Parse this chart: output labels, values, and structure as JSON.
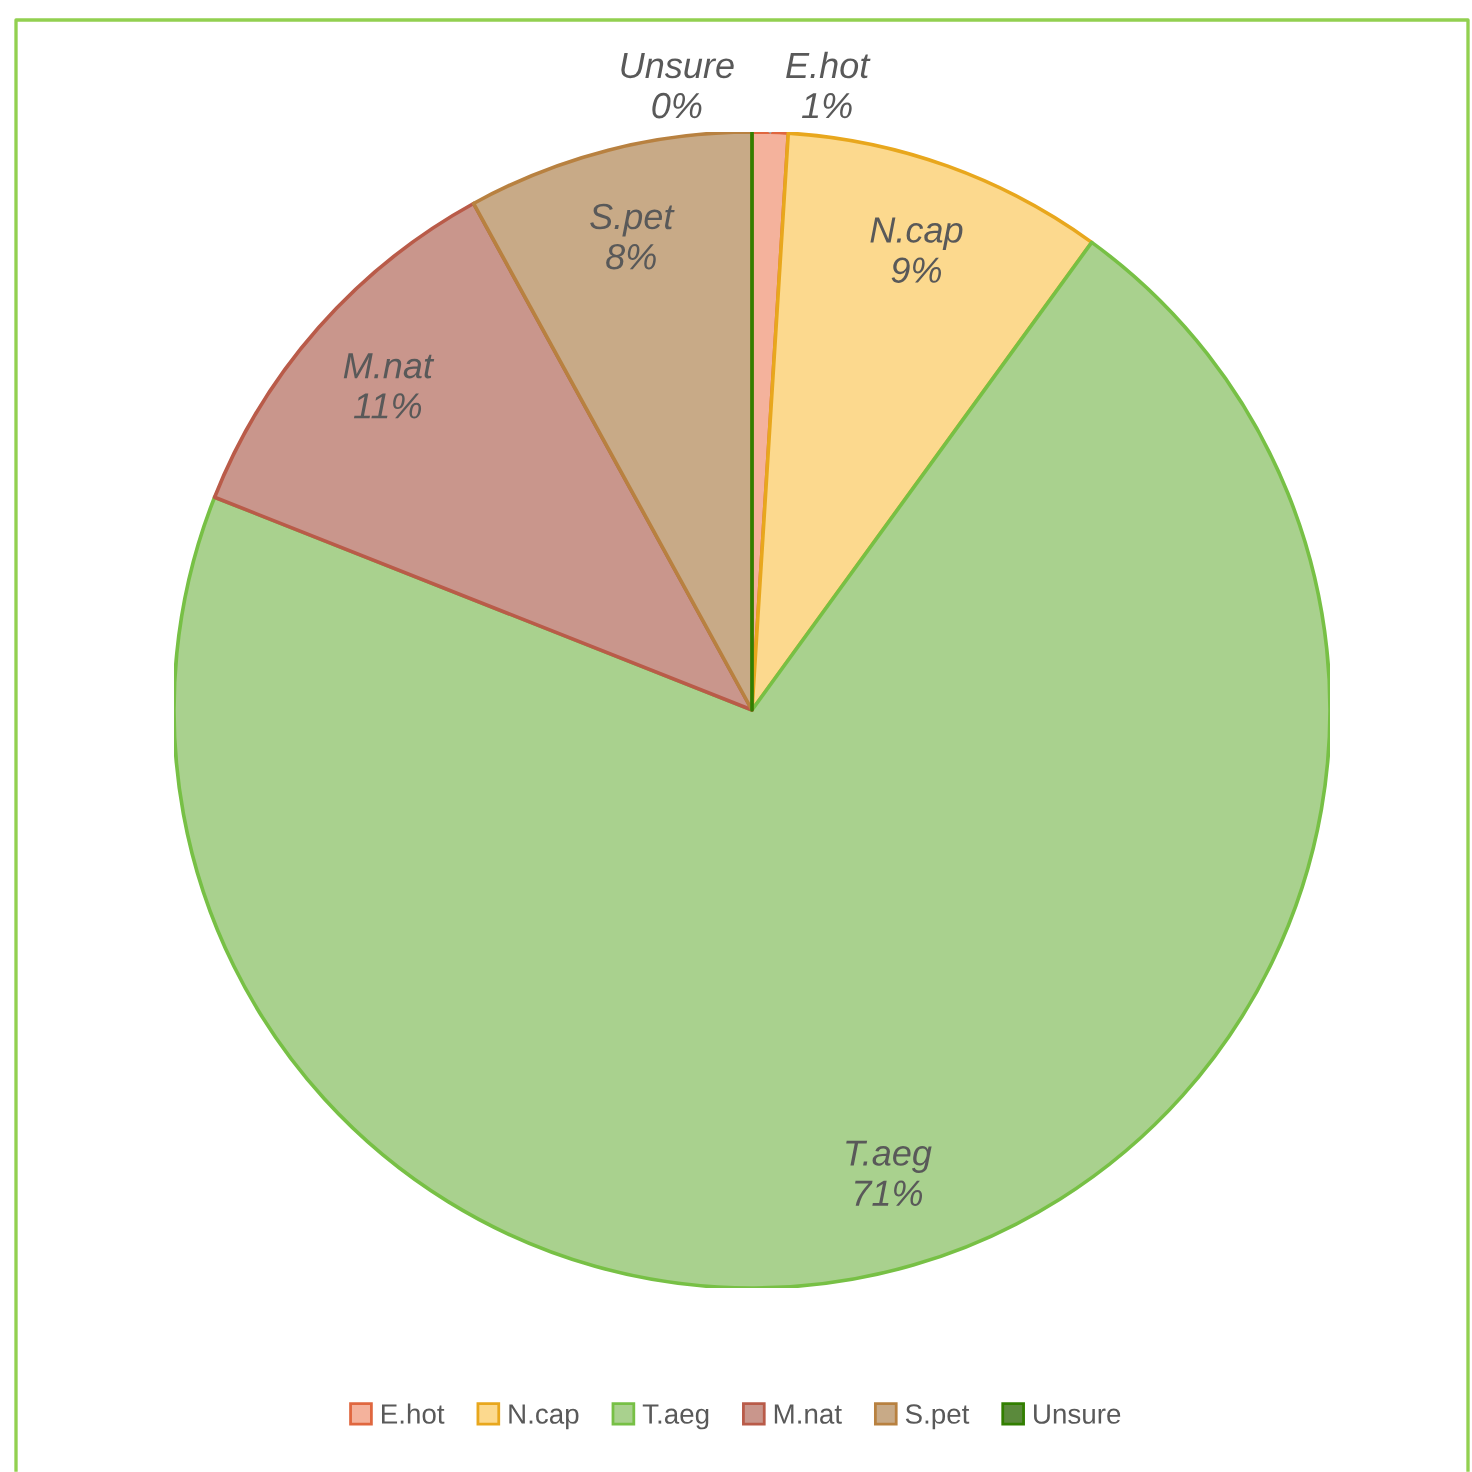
{
  "chart_data": {
    "type": "pie",
    "categories": [
      "E.hot",
      "N.cap",
      "T.aeg",
      "M.nat",
      "S.pet",
      "Unsure"
    ],
    "values": [
      1,
      9,
      71,
      11,
      8,
      0
    ],
    "colors": [
      "#f4b29c",
      "#fcd98e",
      "#a9d18e",
      "#c9968c",
      "#c8aa87",
      "#5b8a3c"
    ],
    "value_labels": [
      "1%",
      "9%",
      "71%",
      "11%",
      "8%",
      "0%"
    ],
    "legend": "bottom"
  }
}
